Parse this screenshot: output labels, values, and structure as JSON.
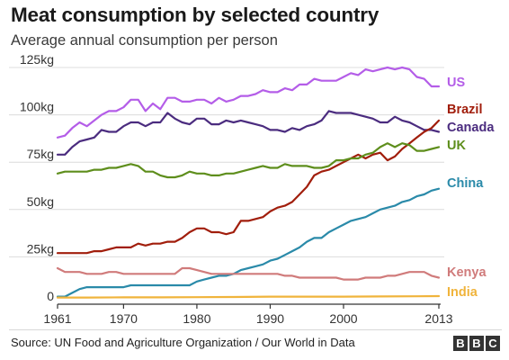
{
  "chart_data": {
    "type": "line",
    "title": "Meat consumption by selected country",
    "subtitle": "Average annual consumption per person",
    "source": "Source: UN Food and Agriculture Organization / Our World in Data",
    "brand": [
      "B",
      "B",
      "C"
    ],
    "xlim": [
      1961,
      2013
    ],
    "ylim": [
      0,
      125
    ],
    "x_ticks": [
      1961,
      1970,
      1980,
      1990,
      2000,
      2013
    ],
    "x_tick_labels": [
      "1961",
      "1970",
      "1980",
      "1990",
      "2000",
      "2013"
    ],
    "y_ticks": [
      0,
      25,
      50,
      75,
      100,
      125
    ],
    "y_tick_labels": [
      "0",
      "25kg",
      "50kg",
      "75kg",
      "100kg",
      "125kg"
    ],
    "grid": true,
    "legend": "direct labels at right end of lines",
    "series": [
      {
        "name": "US",
        "color": "#b45de8",
        "x": [
          1961,
          1962,
          1963,
          1964,
          1965,
          1966,
          1967,
          1968,
          1969,
          1970,
          1971,
          1972,
          1973,
          1974,
          1975,
          1976,
          1977,
          1978,
          1979,
          1980,
          1981,
          1982,
          1983,
          1984,
          1985,
          1986,
          1987,
          1988,
          1989,
          1990,
          1991,
          1992,
          1993,
          1994,
          1995,
          1996,
          1997,
          1998,
          1999,
          2000,
          2001,
          2002,
          2003,
          2004,
          2005,
          2006,
          2007,
          2008,
          2009,
          2010,
          2011,
          2012,
          2013
        ],
        "values": [
          88,
          89,
          93,
          96,
          94,
          97,
          100,
          102,
          102,
          104,
          108,
          108,
          102,
          106,
          103,
          109,
          109,
          107,
          107,
          108,
          108,
          106,
          109,
          107,
          108,
          110,
          110,
          111,
          113,
          112,
          112,
          114,
          113,
          116,
          116,
          119,
          118,
          118,
          118,
          120,
          122,
          121,
          124,
          123,
          124,
          125,
          124,
          125,
          124,
          120,
          119,
          115,
          115
        ]
      },
      {
        "name": "Canada",
        "color": "#4b2c7f",
        "x": [
          1961,
          1962,
          1963,
          1964,
          1965,
          1966,
          1967,
          1968,
          1969,
          1970,
          1971,
          1972,
          1973,
          1974,
          1975,
          1976,
          1977,
          1978,
          1979,
          1980,
          1981,
          1982,
          1983,
          1984,
          1985,
          1986,
          1987,
          1988,
          1989,
          1990,
          1991,
          1992,
          1993,
          1994,
          1995,
          1996,
          1997,
          1998,
          1999,
          2000,
          2001,
          2002,
          2003,
          2004,
          2005,
          2006,
          2007,
          2008,
          2009,
          2010,
          2011,
          2012,
          2013
        ],
        "values": [
          79,
          79,
          83,
          86,
          87,
          88,
          92,
          91,
          91,
          94,
          96,
          96,
          94,
          96,
          96,
          101,
          98,
          96,
          95,
          98,
          98,
          95,
          95,
          97,
          96,
          97,
          96,
          95,
          94,
          92,
          92,
          91,
          93,
          92,
          94,
          95,
          97,
          102,
          101,
          101,
          101,
          100,
          99,
          98,
          96,
          96,
          99,
          97,
          96,
          94,
          92,
          92,
          91
        ]
      },
      {
        "name": "Brazil",
        "color": "#a11e0c",
        "x": [
          1961,
          1962,
          1963,
          1964,
          1965,
          1966,
          1967,
          1968,
          1969,
          1970,
          1971,
          1972,
          1973,
          1974,
          1975,
          1976,
          1977,
          1978,
          1979,
          1980,
          1981,
          1982,
          1983,
          1984,
          1985,
          1986,
          1987,
          1988,
          1989,
          1990,
          1991,
          1992,
          1993,
          1994,
          1995,
          1996,
          1997,
          1998,
          1999,
          2000,
          2001,
          2002,
          2003,
          2004,
          2005,
          2006,
          2007,
          2008,
          2009,
          2010,
          2011,
          2012,
          2013
        ],
        "values": [
          27,
          27,
          27,
          27,
          27,
          28,
          28,
          29,
          30,
          30,
          30,
          32,
          31,
          32,
          32,
          33,
          33,
          35,
          38,
          40,
          40,
          38,
          38,
          37,
          38,
          44,
          44,
          45,
          46,
          49,
          51,
          52,
          54,
          58,
          62,
          68,
          70,
          71,
          73,
          75,
          77,
          79,
          77,
          79,
          80,
          76,
          78,
          82,
          85,
          88,
          91,
          93,
          97
        ]
      },
      {
        "name": "UK",
        "color": "#5e8e1c",
        "x": [
          1961,
          1962,
          1963,
          1964,
          1965,
          1966,
          1967,
          1968,
          1969,
          1970,
          1971,
          1972,
          1973,
          1974,
          1975,
          1976,
          1977,
          1978,
          1979,
          1980,
          1981,
          1982,
          1983,
          1984,
          1985,
          1986,
          1987,
          1988,
          1989,
          1990,
          1991,
          1992,
          1993,
          1994,
          1995,
          1996,
          1997,
          1998,
          1999,
          2000,
          2001,
          2002,
          2003,
          2004,
          2005,
          2006,
          2007,
          2008,
          2009,
          2010,
          2011,
          2012,
          2013
        ],
        "values": [
          69,
          70,
          70,
          70,
          70,
          71,
          71,
          72,
          72,
          73,
          74,
          73,
          70,
          70,
          68,
          67,
          67,
          68,
          70,
          69,
          69,
          68,
          68,
          69,
          69,
          70,
          71,
          72,
          73,
          72,
          72,
          74,
          73,
          73,
          73,
          72,
          72,
          73,
          76,
          76,
          77,
          77,
          79,
          80,
          83,
          85,
          83,
          85,
          84,
          81,
          81,
          82,
          83
        ]
      },
      {
        "name": "China",
        "color": "#2a8aa9",
        "x": [
          1961,
          1962,
          1963,
          1964,
          1965,
          1966,
          1967,
          1968,
          1969,
          1970,
          1971,
          1972,
          1973,
          1974,
          1975,
          1976,
          1977,
          1978,
          1979,
          1980,
          1981,
          1982,
          1983,
          1984,
          1985,
          1986,
          1987,
          1988,
          1989,
          1990,
          1991,
          1992,
          1993,
          1994,
          1995,
          1996,
          1997,
          1998,
          1999,
          2000,
          2001,
          2002,
          2003,
          2004,
          2005,
          2006,
          2007,
          2008,
          2009,
          2010,
          2011,
          2012,
          2013
        ],
        "values": [
          4,
          4,
          6,
          8,
          9,
          9,
          9,
          9,
          9,
          9,
          10,
          10,
          10,
          10,
          10,
          10,
          10,
          10,
          10,
          12,
          13,
          14,
          15,
          15,
          16,
          18,
          19,
          20,
          21,
          23,
          24,
          26,
          28,
          30,
          33,
          35,
          35,
          38,
          40,
          42,
          44,
          45,
          46,
          48,
          50,
          51,
          52,
          54,
          55,
          57,
          58,
          60,
          61
        ]
      },
      {
        "name": "Kenya",
        "color": "#d07b7b",
        "x": [
          1961,
          1962,
          1963,
          1964,
          1965,
          1966,
          1967,
          1968,
          1969,
          1970,
          1971,
          1972,
          1973,
          1974,
          1975,
          1976,
          1977,
          1978,
          1979,
          1980,
          1981,
          1982,
          1983,
          1984,
          1985,
          1986,
          1987,
          1988,
          1989,
          1990,
          1991,
          1992,
          1993,
          1994,
          1995,
          1996,
          1997,
          1998,
          1999,
          2000,
          2001,
          2002,
          2003,
          2004,
          2005,
          2006,
          2007,
          2008,
          2009,
          2010,
          2011,
          2012,
          2013
        ],
        "values": [
          19,
          17,
          17,
          17,
          16,
          16,
          16,
          17,
          17,
          16,
          16,
          16,
          16,
          16,
          16,
          16,
          16,
          19,
          19,
          18,
          17,
          16,
          16,
          16,
          16,
          16,
          16,
          16,
          16,
          16,
          16,
          15,
          15,
          14,
          14,
          14,
          14,
          14,
          14,
          13,
          13,
          13,
          14,
          14,
          14,
          15,
          15,
          16,
          17,
          17,
          17,
          15,
          14
        ]
      },
      {
        "name": "India",
        "color": "#f0b43c",
        "x": [
          1961,
          1965,
          1970,
          1975,
          1980,
          1985,
          1990,
          1995,
          2000,
          2005,
          2010,
          2013
        ],
        "values": [
          3.5,
          3.5,
          3.6,
          3.6,
          3.7,
          3.8,
          4,
          4,
          4,
          4.1,
          4.2,
          4.3
        ]
      }
    ]
  }
}
